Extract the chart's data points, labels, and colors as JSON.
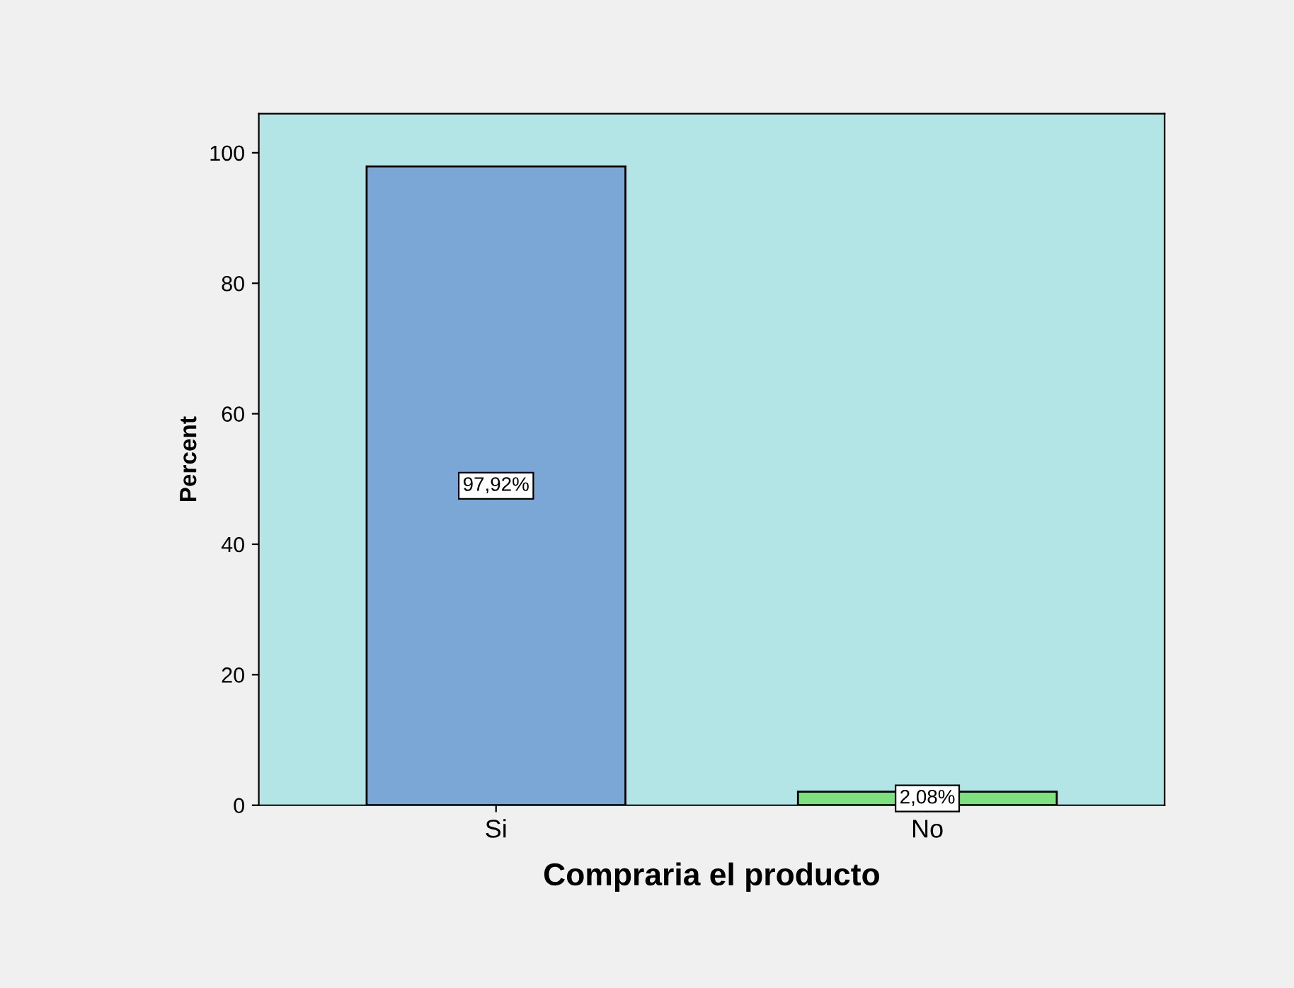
{
  "chart_data": {
    "type": "bar",
    "xlabel": "Compraria el producto",
    "ylabel": "Percent",
    "categories": [
      "Si",
      "No"
    ],
    "values": [
      97.92,
      2.08
    ],
    "colors": [
      "#7ba7d6",
      "#7ee07e"
    ],
    "value_labels": [
      "97,92%",
      "2,08%"
    ],
    "ylim": [
      0,
      106
    ],
    "yticks": [
      0,
      20,
      40,
      60,
      80,
      100
    ]
  }
}
